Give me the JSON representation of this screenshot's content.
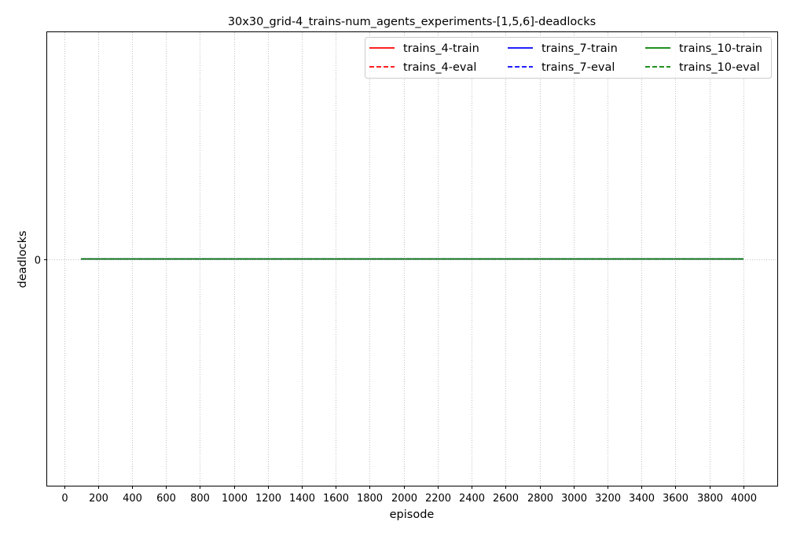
{
  "chart_data": {
    "type": "line",
    "title": "30x30_grid-4_trains-num_agents_experiments-[1,5,6]-deadlocks",
    "xlabel": "episode",
    "ylabel": "deadlocks",
    "xlim": [
      -100,
      4200
    ],
    "ylim": [
      -0.055,
      0.055
    ],
    "xticks": [
      0,
      200,
      400,
      600,
      800,
      1000,
      1200,
      1400,
      1600,
      1800,
      2000,
      2200,
      2400,
      2600,
      2800,
      3000,
      3200,
      3400,
      3600,
      3800,
      4000
    ],
    "xtick_labels": [
      "0",
      "200",
      "400",
      "600",
      "800",
      "1000",
      "1200",
      "1400",
      "1600",
      "1800",
      "2000",
      "2200",
      "2400",
      "2600",
      "2800",
      "3000",
      "3200",
      "3400",
      "3600",
      "3800",
      "4000"
    ],
    "yticks": [
      0
    ],
    "ytick_labels": [
      "0"
    ],
    "grid": {
      "x": true,
      "y": true,
      "style": "dotted"
    },
    "legend": {
      "placement": "top-right",
      "columns": 3
    },
    "series": [
      {
        "name": "trains_4-train",
        "color": "#ff0000",
        "dash": "solid",
        "x": [
          100,
          4000
        ],
        "y": [
          0,
          0
        ]
      },
      {
        "name": "trains_4-eval",
        "color": "#ff0000",
        "dash": "dashed",
        "x": [
          100,
          4000
        ],
        "y": [
          0,
          0
        ]
      },
      {
        "name": "trains_7-train",
        "color": "#0000ff",
        "dash": "solid",
        "x": [
          100,
          4000
        ],
        "y": [
          0,
          0
        ]
      },
      {
        "name": "trains_7-eval",
        "color": "#0000ff",
        "dash": "dashed",
        "x": [
          100,
          4000
        ],
        "y": [
          0,
          0
        ]
      },
      {
        "name": "trains_10-train",
        "color": "#008000",
        "dash": "solid",
        "x": [
          100,
          4000
        ],
        "y": [
          0,
          0
        ]
      },
      {
        "name": "trains_10-eval",
        "color": "#008000",
        "dash": "dashed",
        "x": [
          100,
          4000
        ],
        "y": [
          0,
          0
        ]
      }
    ]
  }
}
